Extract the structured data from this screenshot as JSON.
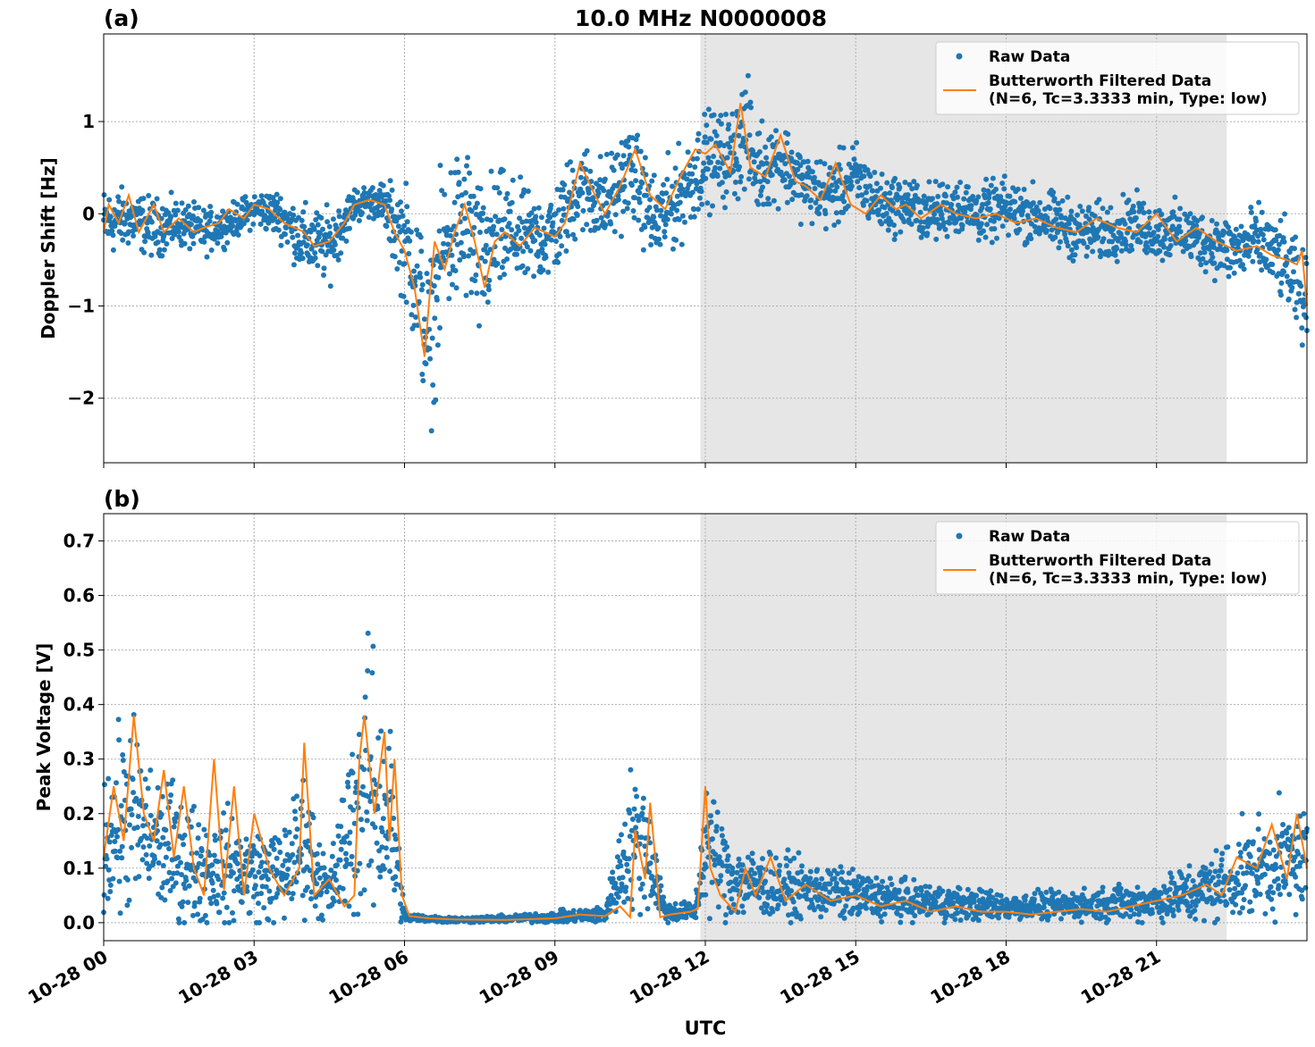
{
  "figure": {
    "title": "10.0 MHz N0000008",
    "xlabel": "UTC",
    "x_ticks": [
      "10-28 00",
      "10-28 03",
      "10-28 06",
      "10-28 09",
      "10-28 12",
      "10-28 15",
      "10-28 18",
      "10-28 21"
    ],
    "colors": {
      "raw": "#1f77b4",
      "filtered": "#ff7f0e",
      "night_shade": "#e6e6e6",
      "grid": "#b0b0b0"
    },
    "shaded_interval_hours": [
      11.9,
      22.4
    ]
  },
  "chart_data": [
    {
      "type": "scatter",
      "panel_label": "(a)",
      "title": "10.0 MHz N0000008",
      "xlabel": "UTC",
      "ylabel": "Doppler Shift [Hz]",
      "xlim": [
        "10-28 00:00",
        "10-29 00:00"
      ],
      "ylim": [
        -2.7,
        1.95
      ],
      "y_ticks": [
        1,
        0,
        -1,
        -2
      ],
      "y_tick_labels": [
        "1",
        "0",
        "−1",
        "−2"
      ],
      "grid": true,
      "legend_position": "top-right",
      "series": [
        {
          "name": "Raw Data",
          "kind": "scatter",
          "color": "#1f77b4",
          "x_hours": [
            0,
            0.5,
            1,
            1.5,
            2,
            2.5,
            3,
            3.5,
            4,
            4.5,
            5,
            5.5,
            6,
            6.25,
            6.5,
            6.75,
            7,
            7.25,
            7.5,
            7.75,
            8,
            8.5,
            9,
            9.5,
            10,
            10.5,
            11,
            11.5,
            12,
            12.5,
            12.8,
            13,
            13.5,
            14,
            14.5,
            15,
            15.5,
            16,
            16.5,
            17,
            17.5,
            18,
            18.5,
            19,
            19.5,
            20,
            20.5,
            21,
            21.5,
            22,
            22.5,
            23,
            23.5,
            24
          ],
          "y_center": [
            -0.1,
            -0.05,
            -0.15,
            -0.1,
            -0.2,
            -0.1,
            0.05,
            0.0,
            -0.3,
            -0.35,
            0.1,
            0.15,
            -0.3,
            -0.7,
            -1.5,
            -0.4,
            -0.2,
            -0.1,
            -0.6,
            -0.3,
            -0.2,
            -0.3,
            -0.2,
            0.3,
            0.1,
            0.5,
            -0.1,
            0.2,
            0.6,
            0.6,
            0.9,
            0.5,
            0.6,
            0.3,
            0.2,
            0.4,
            0.1,
            0.1,
            0.0,
            0.1,
            0.0,
            0.05,
            0.0,
            -0.1,
            -0.2,
            -0.2,
            -0.1,
            -0.2,
            -0.2,
            -0.3,
            -0.4,
            -0.3,
            -0.5,
            -1.0
          ],
          "y_spread": [
            0.3,
            0.25,
            0.25,
            0.2,
            0.2,
            0.15,
            0.15,
            0.2,
            0.3,
            0.3,
            0.15,
            0.15,
            0.5,
            0.7,
            0.7,
            0.7,
            0.7,
            0.7,
            0.7,
            0.6,
            0.5,
            0.4,
            0.4,
            0.4,
            0.4,
            0.4,
            0.4,
            0.4,
            0.4,
            0.4,
            0.5,
            0.4,
            0.35,
            0.3,
            0.3,
            0.3,
            0.25,
            0.25,
            0.25,
            0.25,
            0.25,
            0.25,
            0.25,
            0.25,
            0.25,
            0.25,
            0.25,
            0.25,
            0.25,
            0.25,
            0.3,
            0.3,
            0.35,
            0.4
          ]
        },
        {
          "name": "Butterworth Filtered Data\n(N=6, Tc=3.3333 min, Type: low)",
          "kind": "line",
          "color": "#ff7f0e",
          "x_hours": [
            0,
            0.1,
            0.3,
            0.5,
            0.7,
            1.0,
            1.2,
            1.5,
            1.8,
            2.0,
            2.3,
            2.5,
            2.8,
            3.0,
            3.3,
            3.6,
            4.0,
            4.2,
            4.5,
            4.8,
            5.0,
            5.3,
            5.6,
            5.8,
            6.0,
            6.2,
            6.4,
            6.5,
            6.6,
            6.8,
            7.0,
            7.2,
            7.4,
            7.6,
            7.8,
            8.0,
            8.3,
            8.6,
            9.0,
            9.2,
            9.5,
            9.8,
            10.0,
            10.3,
            10.6,
            10.9,
            11.2,
            11.5,
            11.8,
            12.0,
            12.2,
            12.5,
            12.7,
            12.9,
            13.2,
            13.5,
            13.8,
            14.0,
            14.3,
            14.6,
            14.9,
            15.2,
            15.5,
            15.8,
            16.0,
            16.3,
            16.7,
            17.0,
            17.4,
            17.8,
            18.2,
            18.6,
            19.0,
            19.4,
            19.8,
            20.2,
            20.6,
            21.0,
            21.4,
            21.8,
            22.2,
            22.6,
            23.0,
            23.3,
            23.6,
            23.8,
            23.9,
            24.0
          ],
          "y": [
            -0.2,
            0.1,
            -0.1,
            0.2,
            -0.2,
            0.1,
            -0.2,
            -0.05,
            -0.2,
            -0.15,
            -0.1,
            0.05,
            -0.05,
            0.1,
            0.05,
            -0.1,
            -0.2,
            -0.35,
            -0.3,
            -0.1,
            0.1,
            0.15,
            0.1,
            -0.2,
            -0.4,
            -0.8,
            -1.55,
            -0.9,
            -0.3,
            -0.6,
            -0.2,
            0.1,
            -0.3,
            -0.8,
            -0.3,
            -0.2,
            -0.35,
            -0.15,
            -0.25,
            -0.1,
            0.55,
            0.2,
            0.0,
            0.3,
            0.7,
            0.2,
            0.05,
            0.4,
            0.7,
            0.65,
            0.75,
            0.45,
            1.2,
            0.5,
            0.4,
            0.85,
            0.35,
            0.3,
            0.15,
            0.55,
            0.1,
            0.0,
            0.2,
            0.05,
            0.1,
            -0.05,
            0.1,
            0.0,
            -0.05,
            0.0,
            -0.1,
            -0.05,
            -0.15,
            -0.2,
            -0.05,
            -0.15,
            -0.2,
            0.0,
            -0.3,
            -0.15,
            -0.3,
            -0.4,
            -0.35,
            -0.45,
            -0.5,
            -0.55,
            -0.4,
            -1.0
          ]
        }
      ]
    },
    {
      "type": "scatter",
      "panel_label": "(b)",
      "xlabel": "UTC",
      "ylabel": "Peak Voltage [V]",
      "xlim": [
        "10-28 00:00",
        "10-29 00:00"
      ],
      "ylim": [
        -0.033,
        0.75
      ],
      "y_ticks": [
        0.7,
        0.6,
        0.5,
        0.4,
        0.3,
        0.2,
        0.1,
        0.0
      ],
      "y_tick_labels": [
        "0.7",
        "0.6",
        "0.5",
        "0.4",
        "0.3",
        "0.2",
        "0.1",
        "0.0"
      ],
      "grid": true,
      "legend_position": "top-right",
      "series": [
        {
          "name": "Raw Data",
          "kind": "scatter",
          "color": "#1f77b4",
          "x_hours": [
            0,
            0.5,
            1,
            1.5,
            2,
            2.5,
            3,
            3.5,
            4,
            4.5,
            5,
            5.3,
            5.7,
            6,
            7,
            8,
            9,
            10,
            10.5,
            10.8,
            11.2,
            11.8,
            12,
            12.5,
            13,
            14,
            15,
            16,
            17,
            18,
            19,
            20,
            21,
            22,
            23,
            24
          ],
          "y_center": [
            0.15,
            0.2,
            0.15,
            0.12,
            0.1,
            0.1,
            0.09,
            0.08,
            0.15,
            0.05,
            0.2,
            0.25,
            0.2,
            0.01,
            0.005,
            0.007,
            0.01,
            0.015,
            0.15,
            0.15,
            0.02,
            0.02,
            0.15,
            0.08,
            0.07,
            0.06,
            0.05,
            0.04,
            0.035,
            0.03,
            0.03,
            0.035,
            0.04,
            0.06,
            0.1,
            0.12
          ],
          "y_spread": [
            0.1,
            0.15,
            0.1,
            0.1,
            0.08,
            0.08,
            0.07,
            0.07,
            0.1,
            0.04,
            0.15,
            0.2,
            0.15,
            0.006,
            0.004,
            0.005,
            0.008,
            0.012,
            0.1,
            0.1,
            0.015,
            0.015,
            0.1,
            0.06,
            0.05,
            0.04,
            0.035,
            0.03,
            0.025,
            0.02,
            0.02,
            0.025,
            0.03,
            0.05,
            0.07,
            0.08
          ]
        },
        {
          "name": "Butterworth Filtered Data\n(N=6, Tc=3.3333 min, Type: low)",
          "kind": "line",
          "color": "#ff7f0e",
          "x_hours": [
            0,
            0.2,
            0.4,
            0.6,
            0.8,
            1.0,
            1.2,
            1.4,
            1.6,
            1.8,
            2.0,
            2.2,
            2.4,
            2.6,
            2.8,
            3.0,
            3.3,
            3.6,
            3.9,
            4.0,
            4.2,
            4.5,
            4.8,
            5.0,
            5.1,
            5.2,
            5.4,
            5.6,
            5.7,
            5.8,
            5.95,
            6.1,
            6.5,
            7.0,
            8.0,
            9.0,
            9.5,
            10.0,
            10.3,
            10.5,
            10.6,
            10.8,
            10.9,
            11.0,
            11.1,
            11.3,
            11.7,
            11.85,
            12.0,
            12.1,
            12.3,
            12.6,
            12.8,
            13.0,
            13.3,
            13.6,
            14.0,
            14.5,
            15.0,
            15.5,
            16.0,
            16.5,
            17.0,
            17.5,
            18.0,
            18.5,
            19.0,
            19.5,
            20.0,
            20.5,
            21.0,
            21.5,
            22.0,
            22.3,
            22.6,
            23.0,
            23.3,
            23.6,
            23.8,
            24.0
          ],
          "y": [
            0.12,
            0.25,
            0.15,
            0.38,
            0.2,
            0.15,
            0.28,
            0.12,
            0.25,
            0.1,
            0.05,
            0.3,
            0.06,
            0.25,
            0.05,
            0.2,
            0.1,
            0.05,
            0.1,
            0.33,
            0.05,
            0.08,
            0.03,
            0.05,
            0.3,
            0.38,
            0.2,
            0.35,
            0.15,
            0.3,
            0.05,
            0.012,
            0.008,
            0.006,
            0.005,
            0.008,
            0.015,
            0.012,
            0.03,
            0.01,
            0.17,
            0.08,
            0.22,
            0.12,
            0.01,
            0.015,
            0.02,
            0.025,
            0.25,
            0.1,
            0.05,
            0.02,
            0.1,
            0.05,
            0.12,
            0.04,
            0.07,
            0.04,
            0.05,
            0.03,
            0.04,
            0.02,
            0.03,
            0.02,
            0.02,
            0.015,
            0.02,
            0.025,
            0.02,
            0.03,
            0.04,
            0.05,
            0.07,
            0.05,
            0.12,
            0.1,
            0.18,
            0.08,
            0.2,
            0.1
          ]
        }
      ]
    }
  ]
}
